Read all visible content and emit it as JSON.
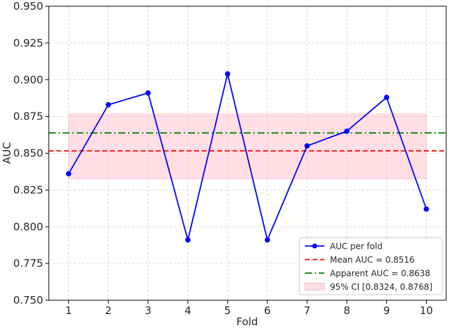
{
  "chart_data": {
    "type": "line",
    "title": "",
    "xlabel": "Fold",
    "ylabel": "AUC",
    "x": [
      1,
      2,
      3,
      4,
      5,
      6,
      7,
      8,
      9,
      10
    ],
    "x_tick_labels": [
      "1",
      "2",
      "3",
      "4",
      "5",
      "6",
      "7",
      "8",
      "9",
      "10"
    ],
    "xlim": [
      0.5,
      10.5
    ],
    "ylim": [
      0.75,
      0.95
    ],
    "y_ticks": [
      0.75,
      0.775,
      0.8,
      0.825,
      0.85,
      0.875,
      0.9,
      0.925,
      0.95
    ],
    "y_tick_labels": [
      "0.750",
      "0.775",
      "0.800",
      "0.825",
      "0.850",
      "0.875",
      "0.900",
      "0.925",
      "0.950"
    ],
    "grid": true,
    "series": [
      {
        "name": "AUC per fold",
        "values": [
          0.836,
          0.883,
          0.891,
          0.791,
          0.904,
          0.791,
          0.855,
          0.865,
          0.888,
          0.812
        ],
        "color": "#0000ff",
        "marker": "circle"
      }
    ],
    "reference_lines": [
      {
        "name": "Mean AUC = 0.8516",
        "y": 0.8516,
        "color": "#ff0000",
        "style": "dashed"
      },
      {
        "name": "Apparent AUC = 0.8638",
        "y": 0.8638,
        "color": "#008000",
        "style": "dashdot"
      }
    ],
    "bands": [
      {
        "name": "95% CI [0.8324, 0.8768]",
        "y_low": 0.8324,
        "y_high": 0.8768,
        "x_range": [
          1,
          10
        ],
        "color": "#ffc0cb"
      }
    ],
    "legend_position": "bottom-right"
  }
}
